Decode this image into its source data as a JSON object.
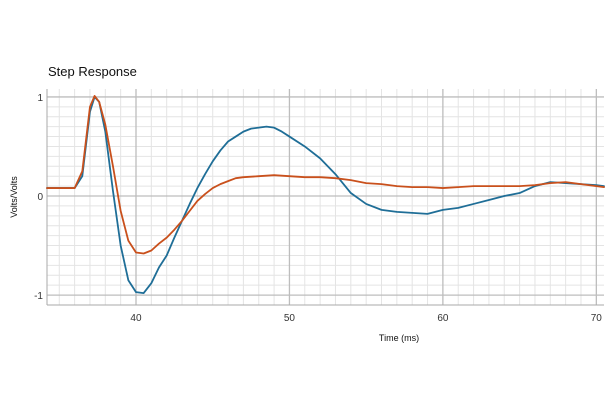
{
  "chart_data": {
    "type": "line",
    "title": "Step Response",
    "xlabel": "Time (ms)",
    "ylabel": "Volts/Volts",
    "xlim": [
      34.2,
      70.5
    ],
    "ylim": [
      -1.1,
      1.08
    ],
    "xticks": [
      40,
      50,
      60,
      70
    ],
    "yticks": [
      -1,
      0,
      1
    ],
    "grid": true,
    "minor_grid": true,
    "legend": false,
    "series": [
      {
        "color": "#1f6e97",
        "x": [
          34.2,
          35,
          36,
          36.5,
          37,
          37.3,
          37.6,
          38,
          38.5,
          39,
          39.5,
          40,
          40.5,
          41,
          41.5,
          42,
          42.5,
          43,
          43.5,
          44,
          44.5,
          45,
          45.5,
          46,
          46.5,
          47,
          47.5,
          48,
          48.5,
          49,
          49.5,
          50,
          51,
          52,
          53,
          54,
          55,
          56,
          57,
          58,
          59,
          60,
          61,
          62,
          63,
          64,
          65,
          66,
          67,
          68,
          69,
          70,
          70.5
        ],
        "values": [
          0.08,
          0.08,
          0.08,
          0.2,
          0.85,
          1.0,
          0.95,
          0.65,
          0.05,
          -0.5,
          -0.85,
          -0.97,
          -0.98,
          -0.88,
          -0.72,
          -0.6,
          -0.42,
          -0.25,
          -0.08,
          0.08,
          0.22,
          0.35,
          0.46,
          0.55,
          0.6,
          0.65,
          0.68,
          0.69,
          0.7,
          0.69,
          0.65,
          0.6,
          0.5,
          0.38,
          0.22,
          0.03,
          -0.08,
          -0.14,
          -0.16,
          -0.17,
          -0.18,
          -0.14,
          -0.12,
          -0.08,
          -0.04,
          0.0,
          0.03,
          0.1,
          0.14,
          0.13,
          0.12,
          0.11,
          0.1
        ]
      },
      {
        "color": "#c9501c",
        "x": [
          34.2,
          35,
          36,
          36.5,
          37,
          37.3,
          37.6,
          38,
          38.5,
          39,
          39.5,
          40,
          40.5,
          41,
          41.5,
          42,
          42.5,
          43,
          43.5,
          44,
          44.5,
          45,
          45.5,
          46,
          46.5,
          47,
          48,
          49,
          50,
          51,
          52,
          53,
          54,
          55,
          56,
          57,
          58,
          59,
          60,
          61,
          62,
          63,
          64,
          65,
          66,
          67,
          68,
          69,
          70,
          70.5
        ],
        "values": [
          0.08,
          0.08,
          0.08,
          0.25,
          0.9,
          1.01,
          0.95,
          0.72,
          0.3,
          -0.15,
          -0.45,
          -0.57,
          -0.58,
          -0.55,
          -0.48,
          -0.42,
          -0.34,
          -0.25,
          -0.15,
          -0.05,
          0.02,
          0.08,
          0.12,
          0.15,
          0.18,
          0.19,
          0.2,
          0.21,
          0.2,
          0.19,
          0.19,
          0.18,
          0.16,
          0.13,
          0.12,
          0.1,
          0.09,
          0.09,
          0.08,
          0.09,
          0.1,
          0.1,
          0.1,
          0.1,
          0.11,
          0.13,
          0.14,
          0.12,
          0.1,
          0.09
        ]
      }
    ]
  }
}
